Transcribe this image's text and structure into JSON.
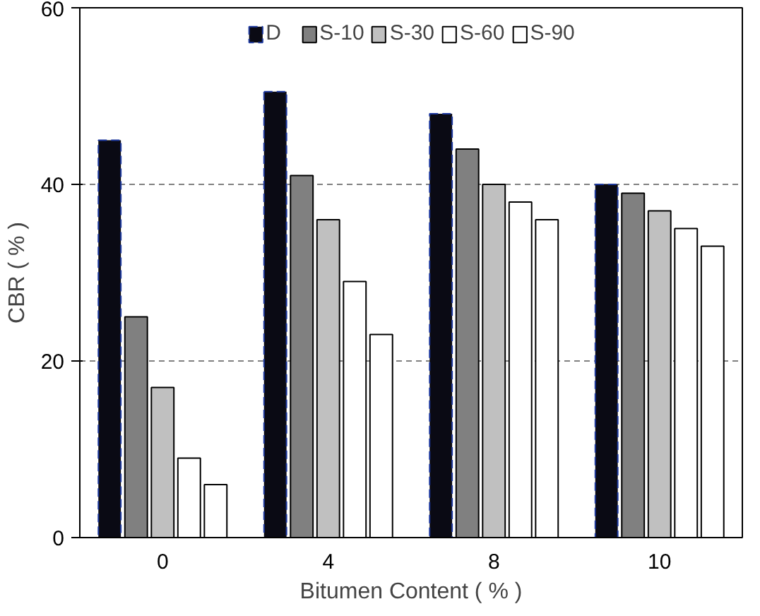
{
  "chart_data": {
    "type": "bar",
    "xlabel": "Bitumen Content ( % )",
    "ylabel": "CBR ( % )",
    "categories": [
      "0",
      "4",
      "8",
      "10"
    ],
    "series": [
      {
        "name": "D",
        "color": "#0a0a14",
        "values": [
          45,
          50.5,
          48,
          40
        ]
      },
      {
        "name": "S-10",
        "color": "#808080",
        "values": [
          25,
          41,
          44,
          39
        ]
      },
      {
        "name": "S-30",
        "color": "#c0c0c0",
        "values": [
          17,
          36,
          40,
          37
        ]
      },
      {
        "name": "S-60",
        "color": "#ffffff",
        "values": [
          9,
          29,
          38,
          35
        ]
      },
      {
        "name": "S-90",
        "color": "#ffffff",
        "values": [
          6,
          23,
          36,
          33
        ]
      }
    ],
    "ylim": [
      0,
      60
    ],
    "yticks": [
      0,
      20,
      40,
      60
    ],
    "grid": "y",
    "legend": "top"
  }
}
